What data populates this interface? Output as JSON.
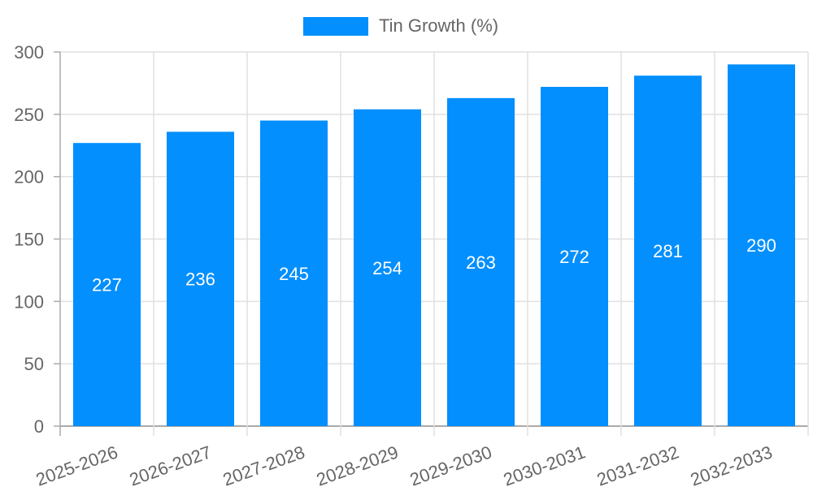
{
  "chart_data": {
    "type": "bar",
    "title": "",
    "categories": [
      "2025-2026",
      "2026-2027",
      "2027-2028",
      "2028-2029",
      "2029-2030",
      "2030-2031",
      "2031-2032",
      "2032-2033"
    ],
    "series": [
      {
        "name": "Tin Growth (%)",
        "values": [
          227,
          236,
          245,
          254,
          263,
          272,
          281,
          290
        ],
        "color": "#038ffd"
      }
    ],
    "xlabel": "",
    "ylabel": "",
    "ylim": [
      0,
      300
    ],
    "yticks": [
      0,
      50,
      100,
      150,
      200,
      250,
      300
    ],
    "grid": true,
    "legend_position": "top",
    "data_labels": true
  },
  "legend": {
    "label": "Tin Growth (%)",
    "color": "#038ffd"
  }
}
